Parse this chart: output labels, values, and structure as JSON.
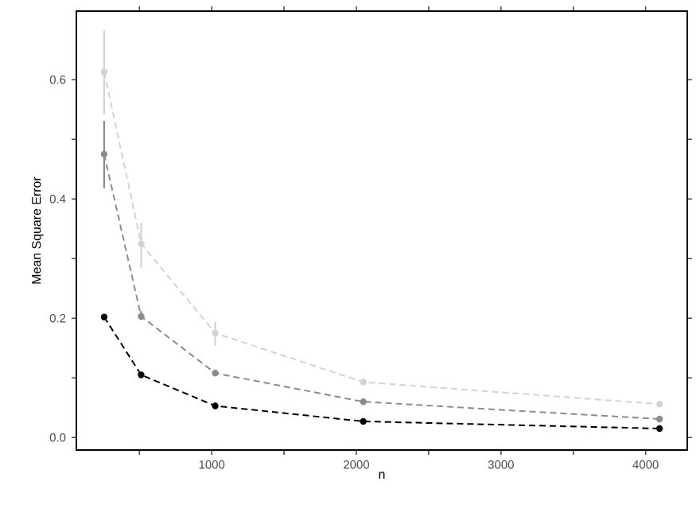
{
  "chart_data": {
    "type": "line",
    "xlabel": "n",
    "ylabel": "Mean Square Error",
    "x": [
      256,
      512,
      1024,
      2048,
      4096
    ],
    "series": [
      {
        "color": "#d3d3d3",
        "values": [
          0.613,
          0.325,
          0.175,
          0.093,
          0.056
        ],
        "errors": [
          [
            0.542,
            0.683
          ],
          [
            0.284,
            0.36
          ],
          [
            0.154,
            0.194
          ],
          null,
          null
        ]
      },
      {
        "color": "#8c8c8c",
        "values": [
          0.475,
          0.203,
          0.108,
          0.06,
          0.031
        ],
        "errors": [
          [
            0.418,
            0.531
          ],
          [
            0.197,
            0.212
          ],
          null,
          null,
          null
        ]
      },
      {
        "color": "#000000",
        "values": [
          0.202,
          0.105,
          0.053,
          0.027,
          0.015
        ]
      }
    ],
    "xlim": [
      64,
      4288
    ],
    "ylim": [
      -0.021,
      0.715
    ],
    "xticks": [
      {
        "value": 500,
        "label": null
      },
      1000,
      {
        "value": 1500,
        "label": null
      },
      2000,
      {
        "value": 2500,
        "label": null
      },
      3000,
      {
        "value": 3500,
        "label": null
      },
      4000
    ],
    "yticks": [
      {
        "value": 0,
        "label": "0.0"
      },
      {
        "value": 0.1,
        "label": null
      },
      {
        "value": 0.2,
        "label": "0.2"
      },
      {
        "value": 0.3,
        "label": null
      },
      {
        "value": 0.4,
        "label": "0.4"
      },
      {
        "value": 0.5,
        "label": null
      },
      {
        "value": 0.6,
        "label": "0.6"
      }
    ],
    "marker": "circle",
    "line_style": "dashed"
  }
}
